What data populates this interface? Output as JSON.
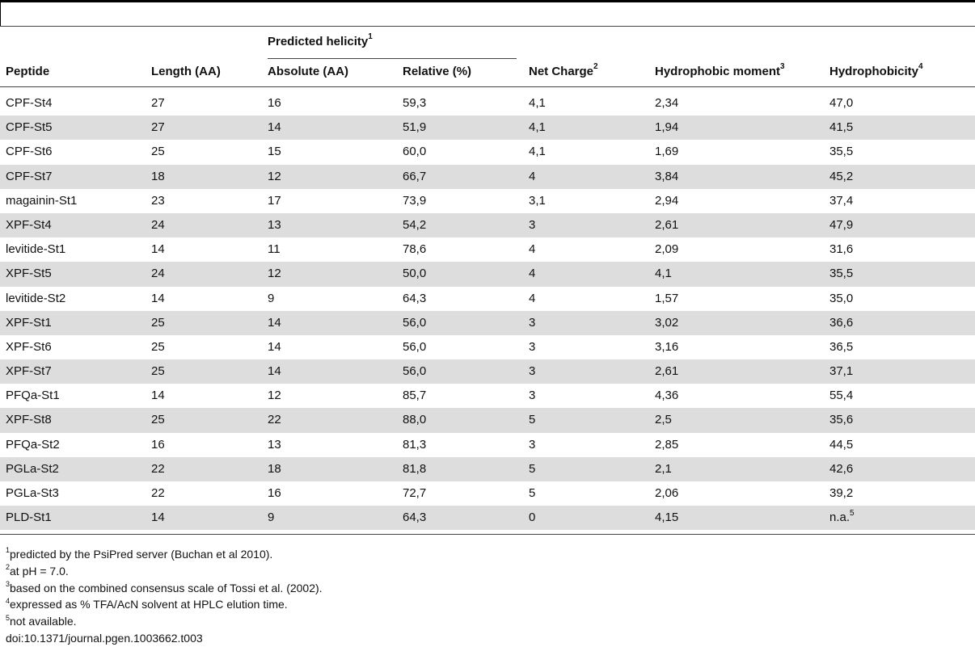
{
  "table": {
    "group_header": "Predicted helicity",
    "group_header_mark": "1",
    "headers": [
      {
        "label": "Peptide",
        "mark": ""
      },
      {
        "label": "Length (AA)",
        "mark": ""
      },
      {
        "label": "Absolute (AA)",
        "mark": ""
      },
      {
        "label": "Relative (%)",
        "mark": ""
      },
      {
        "label": "Net Charge",
        "mark": "2"
      },
      {
        "label": "Hydrophobic moment",
        "mark": "3"
      },
      {
        "label": "Hydrophobicity",
        "mark": "4"
      }
    ],
    "rows": [
      {
        "cells": [
          "CPF-St4",
          "27",
          "16",
          "59,3",
          "4,1",
          "2,34",
          "47,0"
        ],
        "last_mark": ""
      },
      {
        "cells": [
          "CPF-St5",
          "27",
          "14",
          "51,9",
          "4,1",
          "1,94",
          "41,5"
        ],
        "last_mark": ""
      },
      {
        "cells": [
          "CPF-St6",
          "25",
          "15",
          "60,0",
          "4,1",
          "1,69",
          "35,5"
        ],
        "last_mark": ""
      },
      {
        "cells": [
          "CPF-St7",
          "18",
          "12",
          "66,7",
          "4",
          "3,84",
          "45,2"
        ],
        "last_mark": ""
      },
      {
        "cells": [
          "magainin-St1",
          "23",
          "17",
          "73,9",
          "3,1",
          "2,94",
          "37,4"
        ],
        "last_mark": ""
      },
      {
        "cells": [
          "XPF-St4",
          "24",
          "13",
          "54,2",
          "3",
          "2,61",
          "47,9"
        ],
        "last_mark": ""
      },
      {
        "cells": [
          "levitide-St1",
          "14",
          "11",
          "78,6",
          "4",
          "2,09",
          "31,6"
        ],
        "last_mark": ""
      },
      {
        "cells": [
          "XPF-St5",
          "24",
          "12",
          "50,0",
          "4",
          "4,1",
          "35,5"
        ],
        "last_mark": ""
      },
      {
        "cells": [
          "levitide-St2",
          "14",
          "9",
          "64,3",
          "4",
          "1,57",
          "35,0"
        ],
        "last_mark": ""
      },
      {
        "cells": [
          "XPF-St1",
          "25",
          "14",
          "56,0",
          "3",
          "3,02",
          "36,6"
        ],
        "last_mark": ""
      },
      {
        "cells": [
          "XPF-St6",
          "25",
          "14",
          "56,0",
          "3",
          "3,16",
          "36,5"
        ],
        "last_mark": ""
      },
      {
        "cells": [
          "XPF-St7",
          "25",
          "14",
          "56,0",
          "3",
          "2,61",
          "37,1"
        ],
        "last_mark": ""
      },
      {
        "cells": [
          "PFQa-St1",
          "14",
          "12",
          "85,7",
          "3",
          "4,36",
          "55,4"
        ],
        "last_mark": ""
      },
      {
        "cells": [
          "XPF-St8",
          "25",
          "22",
          "88,0",
          "5",
          "2,5",
          "35,6"
        ],
        "last_mark": ""
      },
      {
        "cells": [
          "PFQa-St2",
          "16",
          "13",
          "81,3",
          "3",
          "2,85",
          "44,5"
        ],
        "last_mark": ""
      },
      {
        "cells": [
          "PGLa-St2",
          "22",
          "18",
          "81,8",
          "5",
          "2,1",
          "42,6"
        ],
        "last_mark": ""
      },
      {
        "cells": [
          "PGLa-St3",
          "22",
          "16",
          "72,7",
          "5",
          "2,06",
          "39,2"
        ],
        "last_mark": ""
      },
      {
        "cells": [
          "PLD-St1",
          "14",
          "9",
          "64,3",
          "0",
          "4,15",
          "n.a."
        ],
        "last_mark": "5"
      }
    ]
  },
  "footnotes": [
    {
      "mark": "1",
      "text": "predicted by the PsiPred server (Buchan et al 2010)."
    },
    {
      "mark": "2",
      "text": "at pH = 7.0."
    },
    {
      "mark": "3",
      "text": "based on the combined consensus scale of Tossi et al. (2002)."
    },
    {
      "mark": "4",
      "text": "expressed as % TFA/AcN solvent at HPLC elution time."
    },
    {
      "mark": "5",
      "text": "not available."
    }
  ],
  "doi": "doi:10.1371/journal.pgen.1003662.t003"
}
